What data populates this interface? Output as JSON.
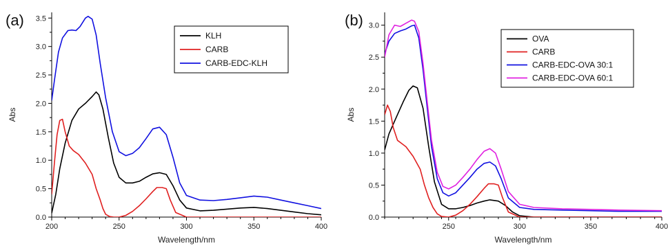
{
  "chart_data": [
    {
      "type": "line",
      "panel_label": "(a)",
      "xlabel": "Wavelength/nm",
      "ylabel": "Abs",
      "xlim": [
        200,
        400
      ],
      "ylim": [
        0,
        3.6
      ],
      "xticks": [
        200,
        250,
        300,
        350,
        400
      ],
      "yticks": [
        0.0,
        0.5,
        1.0,
        1.5,
        2.0,
        2.5,
        3.0,
        3.5
      ],
      "grid": false,
      "legend_position": "top-right",
      "series": [
        {
          "name": "KLH",
          "color": "#000000",
          "x": [
            200,
            203,
            206,
            210,
            215,
            220,
            225,
            230,
            233,
            235,
            238,
            242,
            246,
            250,
            255,
            260,
            265,
            270,
            275,
            280,
            285,
            290,
            295,
            300,
            310,
            320,
            330,
            340,
            350,
            360,
            370,
            380,
            390,
            400
          ],
          "y": [
            0.07,
            0.4,
            0.85,
            1.3,
            1.7,
            1.9,
            2.0,
            2.12,
            2.2,
            2.15,
            1.9,
            1.4,
            0.95,
            0.7,
            0.6,
            0.6,
            0.63,
            0.7,
            0.76,
            0.78,
            0.75,
            0.55,
            0.3,
            0.16,
            0.11,
            0.12,
            0.14,
            0.16,
            0.17,
            0.15,
            0.12,
            0.09,
            0.06,
            0.04
          ]
        },
        {
          "name": "CARB",
          "color": "#e02020",
          "x": [
            200,
            202,
            204,
            206,
            208,
            210,
            213,
            216,
            220,
            225,
            230,
            233,
            236,
            238,
            240,
            243,
            246,
            250,
            255,
            260,
            265,
            270,
            275,
            278,
            282,
            285,
            288,
            292,
            300,
            400
          ],
          "y": [
            0.4,
            0.95,
            1.45,
            1.7,
            1.72,
            1.5,
            1.25,
            1.17,
            1.1,
            0.95,
            0.75,
            0.5,
            0.3,
            0.15,
            0.05,
            0.01,
            0.0,
            0.0,
            0.03,
            0.1,
            0.2,
            0.32,
            0.45,
            0.52,
            0.52,
            0.5,
            0.3,
            0.08,
            0.0,
            0.0
          ]
        },
        {
          "name": "CARB-EDC-KLH",
          "color": "#1010e0",
          "x": [
            200,
            202,
            205,
            208,
            212,
            215,
            218,
            221,
            225,
            227,
            230,
            233,
            236,
            240,
            245,
            250,
            255,
            260,
            265,
            270,
            275,
            280,
            285,
            290,
            295,
            300,
            310,
            320,
            330,
            340,
            350,
            360,
            370,
            380,
            390,
            400
          ],
          "y": [
            2.05,
            2.4,
            2.9,
            3.15,
            3.28,
            3.29,
            3.28,
            3.35,
            3.5,
            3.53,
            3.48,
            3.2,
            2.7,
            2.1,
            1.5,
            1.15,
            1.08,
            1.12,
            1.22,
            1.38,
            1.55,
            1.58,
            1.45,
            1.05,
            0.6,
            0.38,
            0.3,
            0.29,
            0.31,
            0.34,
            0.37,
            0.35,
            0.3,
            0.25,
            0.2,
            0.15
          ]
        }
      ]
    },
    {
      "type": "line",
      "panel_label": "(b)",
      "xlabel": "Wavelength/nm",
      "ylabel": "Abs",
      "xlim": [
        205,
        400
      ],
      "ylim": [
        0,
        3.2
      ],
      "xticks": [
        250,
        300,
        350,
        400
      ],
      "yticks": [
        0.0,
        0.5,
        1.0,
        1.5,
        2.0,
        2.5,
        3.0
      ],
      "grid": false,
      "legend_position": "top-right",
      "series": [
        {
          "name": "OVA",
          "color": "#000000",
          "x": [
            205,
            208,
            212,
            215,
            218,
            222,
            225,
            228,
            232,
            236,
            240,
            245,
            250,
            255,
            260,
            265,
            270,
            275,
            279,
            285,
            290,
            295,
            300,
            310,
            320,
            350,
            400
          ],
          "y": [
            1.05,
            1.3,
            1.5,
            1.65,
            1.8,
            1.98,
            2.05,
            2.02,
            1.7,
            1.1,
            0.55,
            0.2,
            0.13,
            0.13,
            0.15,
            0.18,
            0.22,
            0.25,
            0.27,
            0.25,
            0.18,
            0.08,
            0.02,
            0.0,
            0.0,
            0.0,
            0.0
          ]
        },
        {
          "name": "CARB",
          "color": "#e02020",
          "x": [
            205,
            207,
            209,
            211,
            214,
            217,
            220,
            225,
            230,
            233,
            236,
            239,
            242,
            245,
            250,
            255,
            260,
            265,
            270,
            275,
            278,
            282,
            285,
            288,
            292,
            300,
            400
          ],
          "y": [
            1.6,
            1.75,
            1.65,
            1.4,
            1.2,
            1.15,
            1.1,
            0.95,
            0.75,
            0.5,
            0.3,
            0.15,
            0.05,
            0.01,
            0.0,
            0.03,
            0.1,
            0.2,
            0.32,
            0.45,
            0.52,
            0.52,
            0.5,
            0.3,
            0.08,
            0.0,
            0.0
          ]
        },
        {
          "name": "CARB-EDC-OVA 30:1",
          "color": "#1010e0",
          "x": [
            205,
            208,
            212,
            216,
            220,
            224,
            226,
            229,
            232,
            235,
            238,
            242,
            246,
            250,
            255,
            260,
            265,
            270,
            275,
            279,
            283,
            287,
            292,
            300,
            310,
            330,
            350,
            370,
            400
          ],
          "y": [
            2.55,
            2.75,
            2.87,
            2.91,
            2.94,
            2.99,
            3.0,
            2.8,
            2.3,
            1.7,
            1.1,
            0.6,
            0.38,
            0.33,
            0.38,
            0.5,
            0.62,
            0.75,
            0.84,
            0.86,
            0.8,
            0.6,
            0.3,
            0.15,
            0.12,
            0.11,
            0.1,
            0.09,
            0.09
          ]
        },
        {
          "name": "CARB-EDC-OVA 60:1",
          "color": "#e020e0",
          "x": [
            205,
            208,
            212,
            216,
            220,
            224,
            226,
            229,
            232,
            235,
            238,
            242,
            246,
            250,
            255,
            260,
            265,
            270,
            275,
            279,
            283,
            287,
            292,
            300,
            310,
            330,
            350,
            370,
            400
          ],
          "y": [
            2.5,
            2.85,
            3.0,
            2.98,
            3.03,
            3.08,
            3.06,
            2.9,
            2.4,
            1.8,
            1.2,
            0.7,
            0.48,
            0.44,
            0.5,
            0.62,
            0.75,
            0.9,
            1.03,
            1.07,
            1.0,
            0.75,
            0.4,
            0.2,
            0.15,
            0.13,
            0.12,
            0.11,
            0.1
          ]
        }
      ]
    }
  ]
}
